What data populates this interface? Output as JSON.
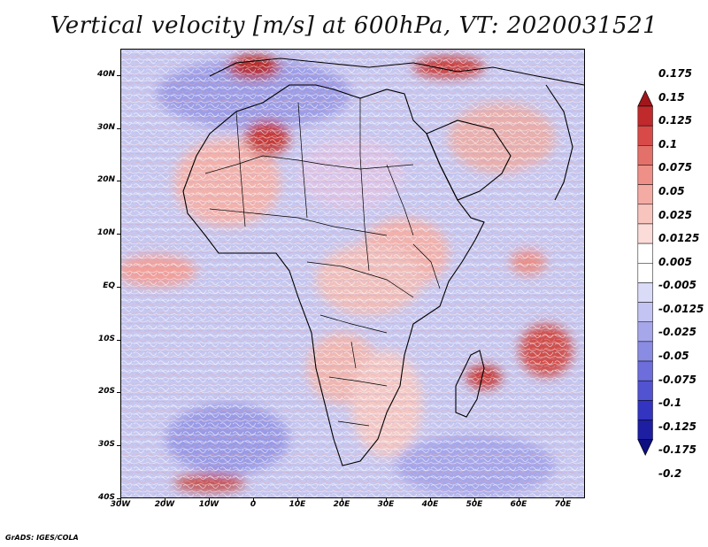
{
  "title": "Vertical velocity [m/s] at 600hPa, VT: 2020031521",
  "footer": "GrADS: IGES/COLA",
  "map": {
    "lon_range": [
      -30,
      75
    ],
    "lat_range": [
      -40,
      45
    ],
    "lat_labels": [
      "40N",
      "30N",
      "20N",
      "10N",
      "EQ",
      "10S",
      "20S",
      "30S",
      "40S"
    ],
    "lat_values": [
      40,
      30,
      20,
      10,
      0,
      -10,
      -20,
      -30,
      -40
    ],
    "lon_labels": [
      "30W",
      "20W",
      "10W",
      "0",
      "10E",
      "20E",
      "30E",
      "40E",
      "50E",
      "60E",
      "70E"
    ],
    "lon_values": [
      -30,
      -20,
      -10,
      0,
      10,
      20,
      30,
      40,
      50,
      60,
      70
    ]
  },
  "colorbar": {
    "labels": [
      "0.175",
      "0.15",
      "0.125",
      "0.1",
      "0.075",
      "0.05",
      "0.025",
      "0.0125",
      "0.005",
      "-0.005",
      "-0.0125",
      "-0.025",
      "-0.05",
      "-0.075",
      "-0.1",
      "-0.125",
      "-0.175",
      "-0.2"
    ],
    "colors": [
      "#a0161a",
      "#c02a2c",
      "#d84a48",
      "#e4706a",
      "#ee9088",
      "#f3aba4",
      "#f7c4be",
      "#fbdcd8",
      "#ffffff",
      "#ffffff",
      "#dadbf7",
      "#c3c4f1",
      "#a6a7ea",
      "#8a8be2",
      "#6d6edb",
      "#5253d1",
      "#3334c0",
      "#1d1ea2",
      "#0e0f80"
    ]
  }
}
